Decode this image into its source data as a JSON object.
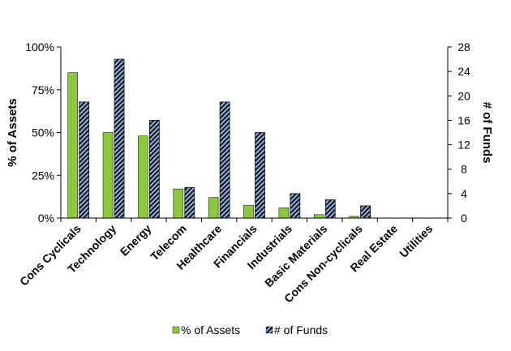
{
  "chart_data": {
    "type": "bar",
    "categories": [
      "Cons Cyclicals",
      "Technology",
      "Energy",
      "Telecom",
      "Healthcare",
      "Financials",
      "Industrials",
      "Basic Materials",
      "Cons Non-cyclicals",
      "Real Estate",
      "Utilities"
    ],
    "series": [
      {
        "name": "% of Assets",
        "axis": "left",
        "color": "#8dc63f",
        "values": [
          85,
          50,
          48,
          17,
          12,
          7.5,
          6,
          2,
          1,
          0,
          0
        ]
      },
      {
        "name": "# of Funds",
        "axis": "right",
        "color": "#8fb4e3",
        "pattern": "diagonal-stripes",
        "values": [
          19,
          26,
          16,
          5,
          19,
          14,
          4,
          3,
          2,
          0,
          0
        ]
      }
    ],
    "ylabel": "% of Assets",
    "y2label": "# of Funds",
    "ylim": [
      0,
      100
    ],
    "y2lim": [
      0,
      28
    ],
    "yticks": [
      "0%",
      "25%",
      "50%",
      "75%",
      "100%"
    ],
    "y2ticks": [
      "0",
      "4",
      "8",
      "12",
      "16",
      "20",
      "24",
      "28"
    ],
    "grid": false,
    "legend_position": "bottom"
  }
}
